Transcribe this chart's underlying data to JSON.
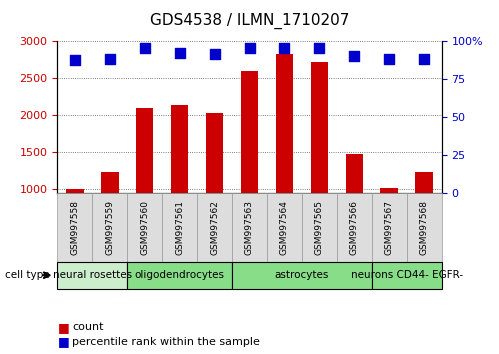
{
  "title": "GDS4538 / ILMN_1710207",
  "samples": [
    "GSM997558",
    "GSM997559",
    "GSM997560",
    "GSM997561",
    "GSM997562",
    "GSM997563",
    "GSM997564",
    "GSM997565",
    "GSM997566",
    "GSM997567",
    "GSM997568"
  ],
  "counts": [
    1000,
    1230,
    2090,
    2140,
    2020,
    2590,
    2820,
    2720,
    1470,
    1010,
    1230
  ],
  "percentile": [
    87,
    88,
    95,
    92,
    91,
    95,
    95,
    95,
    90,
    88,
    88
  ],
  "ylim_left": [
    950,
    3000
  ],
  "ylim_right": [
    0,
    100
  ],
  "yticks_left": [
    1000,
    1500,
    2000,
    2500,
    3000
  ],
  "yticks_right": [
    0,
    25,
    50,
    75,
    100
  ],
  "bar_color": "#cc0000",
  "dot_color": "#0000cc",
  "bar_width": 0.5,
  "dot_size": 45,
  "grid_color": "#555555",
  "bg_color": "#ffffff",
  "tick_label_fontsize": 8,
  "title_fontsize": 11,
  "legend_fontsize": 8,
  "cell_type_fontsize": 7.5,
  "ylabel_left_color": "#cc0000",
  "ylabel_right_color": "#0000cc",
  "cell_groups": [
    {
      "label": "neural rosettes",
      "start": 0,
      "end": 2,
      "color": "#cceecc"
    },
    {
      "label": "oligodendrocytes",
      "start": 2,
      "end": 5,
      "color": "#88dd88"
    },
    {
      "label": "astrocytes",
      "start": 5,
      "end": 9,
      "color": "#88dd88"
    },
    {
      "label": "neurons CD44- EGFR-",
      "start": 9,
      "end": 11,
      "color": "#88dd88"
    }
  ],
  "sample_box_color": "#dddddd",
  "sample_box_edge": "#999999"
}
